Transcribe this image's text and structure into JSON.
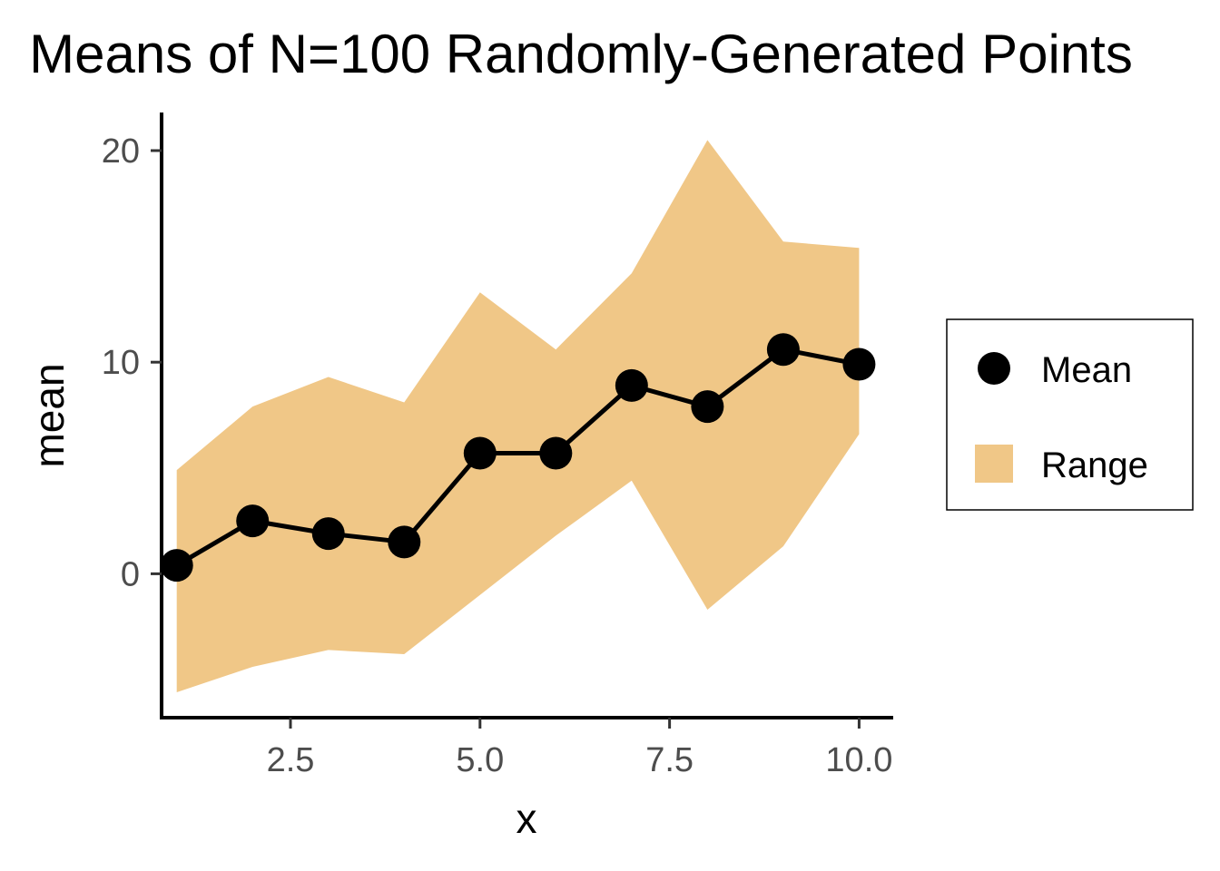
{
  "chart_data": {
    "type": "line",
    "title": "Means of N=100 Randomly-Generated Points",
    "xlabel": "x",
    "ylabel": "mean",
    "xlim": [
      0.8,
      10.45
    ],
    "ylim": [
      -6.8,
      21.8
    ],
    "x_ticks": [
      2.5,
      5.0,
      7.5,
      10.0
    ],
    "x_tick_labels": [
      "2.5",
      "5.0",
      "7.5",
      "10.0"
    ],
    "y_ticks": [
      0,
      10,
      20
    ],
    "y_tick_labels": [
      "0",
      "10",
      "20"
    ],
    "grid": false,
    "legend_position": "right",
    "colors": {
      "mean": "#000000",
      "range": "#f0c787"
    },
    "series": [
      {
        "name": "Mean",
        "kind": "line+points",
        "x": [
          1,
          2,
          3,
          4,
          5,
          6,
          7,
          8,
          9,
          10
        ],
        "y": [
          0.4,
          2.5,
          1.9,
          1.5,
          5.7,
          5.7,
          8.9,
          7.9,
          10.6,
          9.9
        ]
      },
      {
        "name": "Range",
        "kind": "ribbon",
        "x": [
          1,
          2,
          3,
          4,
          5,
          6,
          7,
          8,
          9,
          10
        ],
        "ymin": [
          -5.6,
          -4.4,
          -3.6,
          -3.8,
          -1.0,
          1.8,
          4.4,
          -1.7,
          1.3,
          6.6
        ],
        "ymax": [
          4.9,
          7.9,
          9.3,
          8.1,
          13.3,
          10.6,
          14.2,
          20.5,
          15.7,
          15.4
        ]
      }
    ]
  }
}
